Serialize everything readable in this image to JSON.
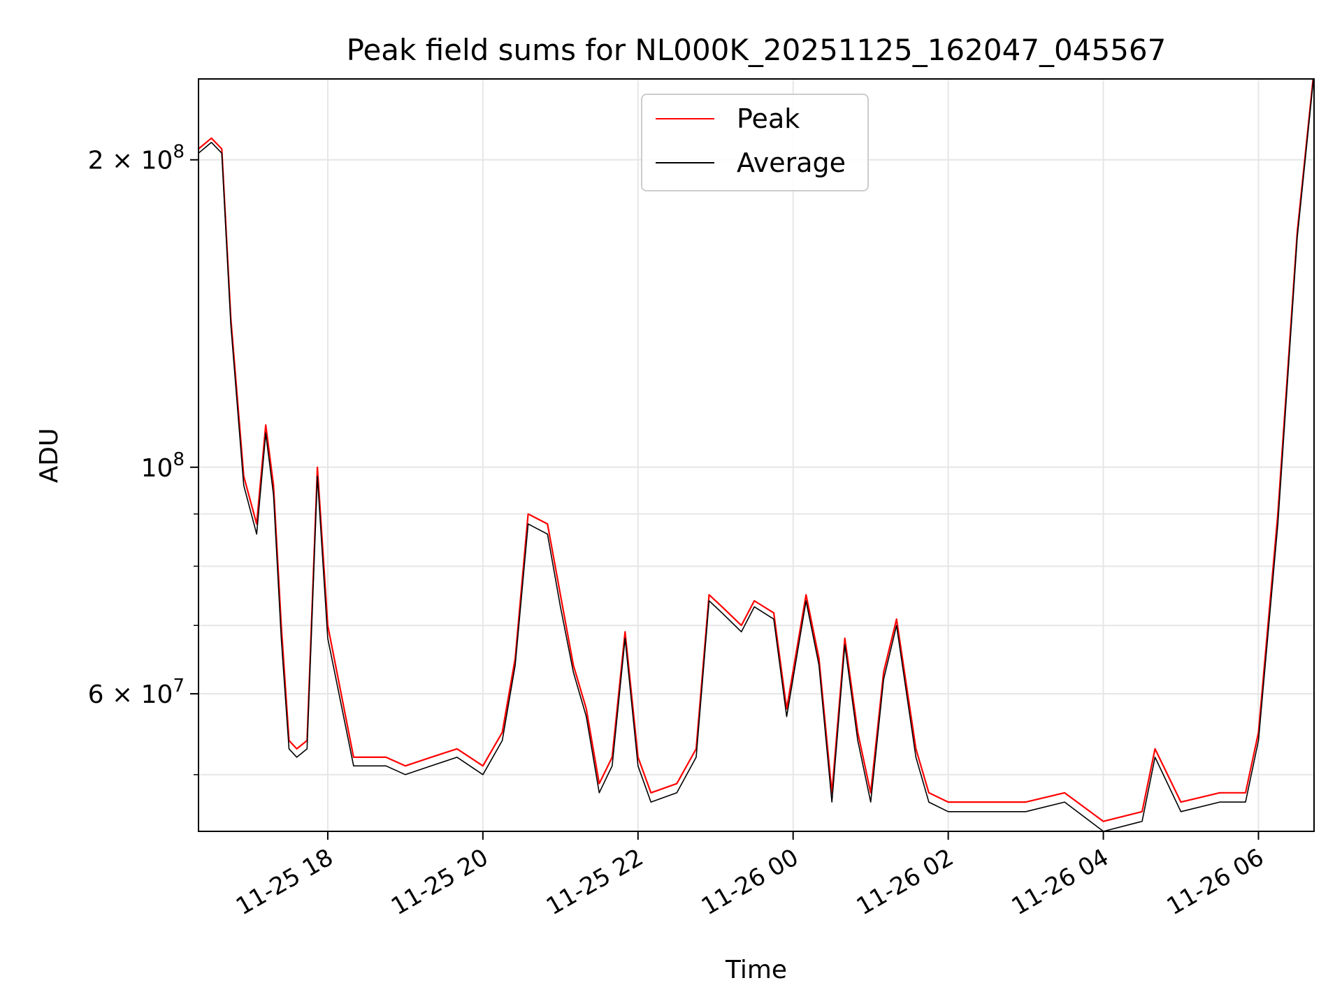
{
  "chart_data": {
    "type": "line",
    "title": "Peak field sums for NL000K_20251125_162047_045567",
    "xlabel": "Time",
    "ylabel": "ADU",
    "yscale": "log",
    "ylim": [
      44000000,
      240000000
    ],
    "xlim": [
      "2025-11-25 16:20",
      "2025-11-26 06:43"
    ],
    "grid": true,
    "legend_placement": "upper-center",
    "x_ticks": [
      {
        "label": "11-25 18",
        "value": "2025-11-25 18:00"
      },
      {
        "label": "11-25 20",
        "value": "2025-11-25 20:00"
      },
      {
        "label": "11-25 22",
        "value": "2025-11-25 22:00"
      },
      {
        "label": "11-26 00",
        "value": "2025-11-26 00:00"
      },
      {
        "label": "11-26 02",
        "value": "2025-11-26 02:00"
      },
      {
        "label": "11-26 04",
        "value": "2025-11-26 04:00"
      },
      {
        "label": "11-26 06",
        "value": "2025-11-26 06:00"
      }
    ],
    "y_ticks": [
      {
        "mantissa": "2",
        "exponent": "8",
        "value": 200000000
      },
      {
        "mantissa": "",
        "exponent": "8",
        "value": 100000000
      },
      {
        "mantissa": "6",
        "exponent": "7",
        "value": 60000000
      }
    ],
    "y_minor_ticks": [
      50000000,
      70000000,
      80000000,
      90000000,
      300000000
    ],
    "series": [
      {
        "name": "Peak",
        "color": "#ff0000",
        "x": [
          "2025-11-25 16:20",
          "2025-11-25 16:30",
          "2025-11-25 16:38",
          "2025-11-25 16:45",
          "2025-11-25 16:55",
          "2025-11-25 17:05",
          "2025-11-25 17:12",
          "2025-11-25 17:18",
          "2025-11-25 17:24",
          "2025-11-25 17:30",
          "2025-11-25 17:36",
          "2025-11-25 17:44",
          "2025-11-25 17:52",
          "2025-11-25 18:00",
          "2025-11-25 18:20",
          "2025-11-25 18:45",
          "2025-11-25 19:00",
          "2025-11-25 19:20",
          "2025-11-25 19:40",
          "2025-11-25 20:00",
          "2025-11-25 20:15",
          "2025-11-25 20:25",
          "2025-11-25 20:35",
          "2025-11-25 20:50",
          "2025-11-25 21:00",
          "2025-11-25 21:10",
          "2025-11-25 21:20",
          "2025-11-25 21:30",
          "2025-11-25 21:40",
          "2025-11-25 21:50",
          "2025-11-25 22:00",
          "2025-11-25 22:10",
          "2025-11-25 22:30",
          "2025-11-25 22:45",
          "2025-11-25 22:55",
          "2025-11-25 23:05",
          "2025-11-25 23:20",
          "2025-11-25 23:30",
          "2025-11-25 23:45",
          "2025-11-25 23:55",
          "2025-11-26 00:10",
          "2025-11-26 00:20",
          "2025-11-26 00:30",
          "2025-11-26 00:40",
          "2025-11-26 00:50",
          "2025-11-26 01:00",
          "2025-11-26 01:10",
          "2025-11-26 01:20",
          "2025-11-26 01:35",
          "2025-11-26 01:45",
          "2025-11-26 02:00",
          "2025-11-26 02:30",
          "2025-11-26 03:00",
          "2025-11-26 03:30",
          "2025-11-26 04:00",
          "2025-11-26 04:30",
          "2025-11-26 04:40",
          "2025-11-26 05:00",
          "2025-11-26 05:30",
          "2025-11-26 05:50",
          "2025-11-26 06:00",
          "2025-11-26 06:15",
          "2025-11-26 06:30",
          "2025-11-26 06:43"
        ],
        "y": [
          205000000,
          210000000,
          205000000,
          140000000,
          98000000,
          88000000,
          110000000,
          96000000,
          70000000,
          54000000,
          53000000,
          54000000,
          100000000,
          70000000,
          52000000,
          52000000,
          51000000,
          52000000,
          53000000,
          51000000,
          55000000,
          65000000,
          90000000,
          88000000,
          75000000,
          64000000,
          58000000,
          49000000,
          52000000,
          69000000,
          52000000,
          48000000,
          49000000,
          53000000,
          75000000,
          73000000,
          70000000,
          74000000,
          72000000,
          58000000,
          75000000,
          65000000,
          48000000,
          68000000,
          55000000,
          48000000,
          63000000,
          71000000,
          53000000,
          48000000,
          47000000,
          47000000,
          47000000,
          48000000,
          45000000,
          46000000,
          53000000,
          47000000,
          48000000,
          48000000,
          55000000,
          90000000,
          170000000,
          245000000
        ]
      },
      {
        "name": "Average",
        "color": "#000000",
        "x": [
          "2025-11-25 16:20",
          "2025-11-25 16:30",
          "2025-11-25 16:38",
          "2025-11-25 16:45",
          "2025-11-25 16:55",
          "2025-11-25 17:05",
          "2025-11-25 17:12",
          "2025-11-25 17:18",
          "2025-11-25 17:24",
          "2025-11-25 17:30",
          "2025-11-25 17:36",
          "2025-11-25 17:44",
          "2025-11-25 17:52",
          "2025-11-25 18:00",
          "2025-11-25 18:20",
          "2025-11-25 18:45",
          "2025-11-25 19:00",
          "2025-11-25 19:20",
          "2025-11-25 19:40",
          "2025-11-25 20:00",
          "2025-11-25 20:15",
          "2025-11-25 20:25",
          "2025-11-25 20:35",
          "2025-11-25 20:50",
          "2025-11-25 21:00",
          "2025-11-25 21:10",
          "2025-11-25 21:20",
          "2025-11-25 21:30",
          "2025-11-25 21:40",
          "2025-11-25 21:50",
          "2025-11-25 22:00",
          "2025-11-25 22:10",
          "2025-11-25 22:30",
          "2025-11-25 22:45",
          "2025-11-25 22:55",
          "2025-11-25 23:05",
          "2025-11-25 23:20",
          "2025-11-25 23:30",
          "2025-11-25 23:45",
          "2025-11-25 23:55",
          "2025-11-26 00:10",
          "2025-11-26 00:20",
          "2025-11-26 00:30",
          "2025-11-26 00:40",
          "2025-11-26 00:50",
          "2025-11-26 01:00",
          "2025-11-26 01:10",
          "2025-11-26 01:20",
          "2025-11-26 01:35",
          "2025-11-26 01:45",
          "2025-11-26 02:00",
          "2025-11-26 02:30",
          "2025-11-26 03:00",
          "2025-11-26 03:30",
          "2025-11-26 04:00",
          "2025-11-26 04:30",
          "2025-11-26 04:40",
          "2025-11-26 05:00",
          "2025-11-26 05:30",
          "2025-11-26 05:50",
          "2025-11-26 06:00",
          "2025-11-26 06:15",
          "2025-11-26 06:30",
          "2025-11-26 06:43"
        ],
        "y": [
          203000000,
          208000000,
          203000000,
          138000000,
          96000000,
          86000000,
          108000000,
          94000000,
          68000000,
          53000000,
          52000000,
          53000000,
          98000000,
          68000000,
          51000000,
          51000000,
          50000000,
          51000000,
          52000000,
          50000000,
          54000000,
          64000000,
          88000000,
          86000000,
          73000000,
          63000000,
          57000000,
          48000000,
          51000000,
          68000000,
          51000000,
          47000000,
          48000000,
          52000000,
          74000000,
          72000000,
          69000000,
          73000000,
          71000000,
          57000000,
          74000000,
          64000000,
          47000000,
          67000000,
          54000000,
          47000000,
          62000000,
          70000000,
          52000000,
          47000000,
          46000000,
          46000000,
          46000000,
          47000000,
          44000000,
          45000000,
          52000000,
          46000000,
          47000000,
          47000000,
          54000000,
          88000000,
          168000000,
          243000000
        ]
      }
    ]
  }
}
